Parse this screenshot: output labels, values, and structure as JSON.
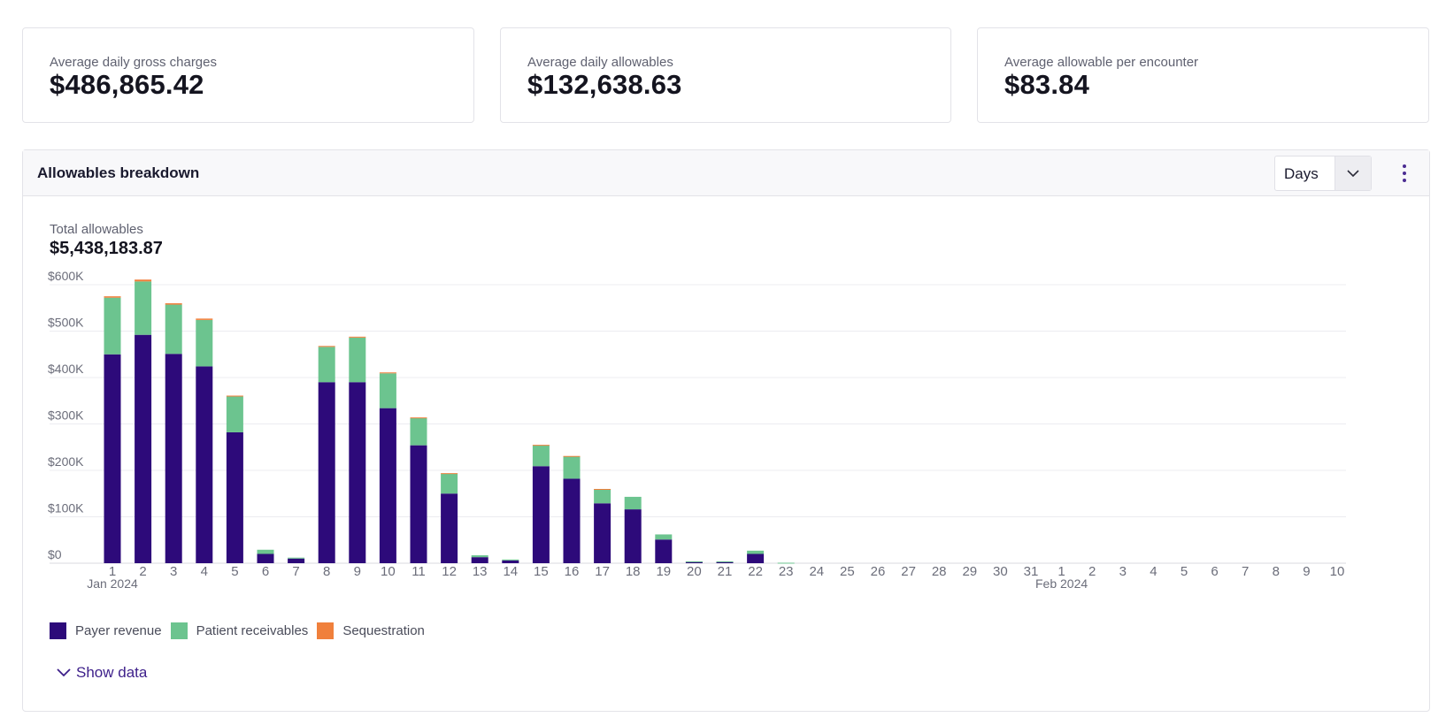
{
  "kpis": [
    {
      "label": "Average daily gross charges",
      "value": "$486,865.42"
    },
    {
      "label": "Average daily allowables",
      "value": "$132,638.63"
    },
    {
      "label": "Average allowable per encounter",
      "value": "$83.84"
    }
  ],
  "panel": {
    "title": "Allowables breakdown",
    "select_value": "Days",
    "total_label": "Total allowables",
    "total_value": "$5,438,183.87",
    "show_data_label": "Show data"
  },
  "icons": {
    "select": "chevron-down-icon",
    "menu": "kebab-menu-icon",
    "show_data": "chevron-down-icon"
  },
  "colors": {
    "payer_revenue": "#2d0a7a",
    "patient_receivables": "#6cc48f",
    "sequestration": "#f0803c",
    "link": "#3d1f8a"
  },
  "chart_data": {
    "type": "bar",
    "stacked": true,
    "categories": [
      "1",
      "2",
      "3",
      "4",
      "5",
      "6",
      "7",
      "8",
      "9",
      "10",
      "11",
      "12",
      "13",
      "14",
      "15",
      "16",
      "17",
      "18",
      "19",
      "20",
      "21",
      "22",
      "23",
      "24",
      "25",
      "26",
      "27",
      "28",
      "29",
      "30",
      "31",
      "1",
      "2",
      "3",
      "4",
      "5",
      "6",
      "7",
      "8",
      "9",
      "10"
    ],
    "month_labels": [
      {
        "index": 0,
        "label": "Jan 2024"
      },
      {
        "index": 31,
        "label": "Feb 2024"
      }
    ],
    "series": [
      {
        "name": "Payer revenue",
        "color": "#2d0a7a",
        "values": [
          450000,
          492000,
          451000,
          424000,
          282000,
          20000,
          10000,
          390000,
          390000,
          334000,
          254000,
          150000,
          13000,
          6000,
          209000,
          182000,
          129000,
          116000,
          51000,
          3000,
          3000,
          20000,
          0,
          0,
          0,
          0,
          0,
          0,
          0,
          0,
          0,
          0,
          0,
          0,
          0,
          0,
          0,
          0,
          0,
          0,
          0
        ]
      },
      {
        "name": "Patient receivables",
        "color": "#6cc48f",
        "values": [
          122000,
          115000,
          106000,
          100000,
          77000,
          9000,
          2000,
          76000,
          96000,
          75000,
          59000,
          43000,
          4000,
          2000,
          45000,
          48000,
          30000,
          27000,
          11000,
          1000,
          1000,
          7000,
          1000,
          0,
          0,
          0,
          0,
          0,
          0,
          0,
          0,
          0,
          0,
          0,
          0,
          0,
          0,
          0,
          0,
          0,
          0
        ]
      },
      {
        "name": "Sequestration",
        "color": "#f0803c",
        "values": [
          3000,
          4000,
          3000,
          3000,
          2000,
          0,
          0,
          2000,
          2000,
          2000,
          1000,
          1000,
          0,
          0,
          1000,
          1000,
          1000,
          0,
          0,
          0,
          0,
          0,
          0,
          0,
          0,
          0,
          0,
          0,
          0,
          0,
          0,
          0,
          0,
          0,
          0,
          0,
          0,
          0,
          0,
          0,
          0
        ]
      }
    ],
    "y_ticks": [
      "$0",
      "$100K",
      "$200K",
      "$300K",
      "$400K",
      "$500K",
      "$600K"
    ],
    "ylim": [
      0,
      600000
    ],
    "grid": true,
    "legend": "bottom-left"
  }
}
